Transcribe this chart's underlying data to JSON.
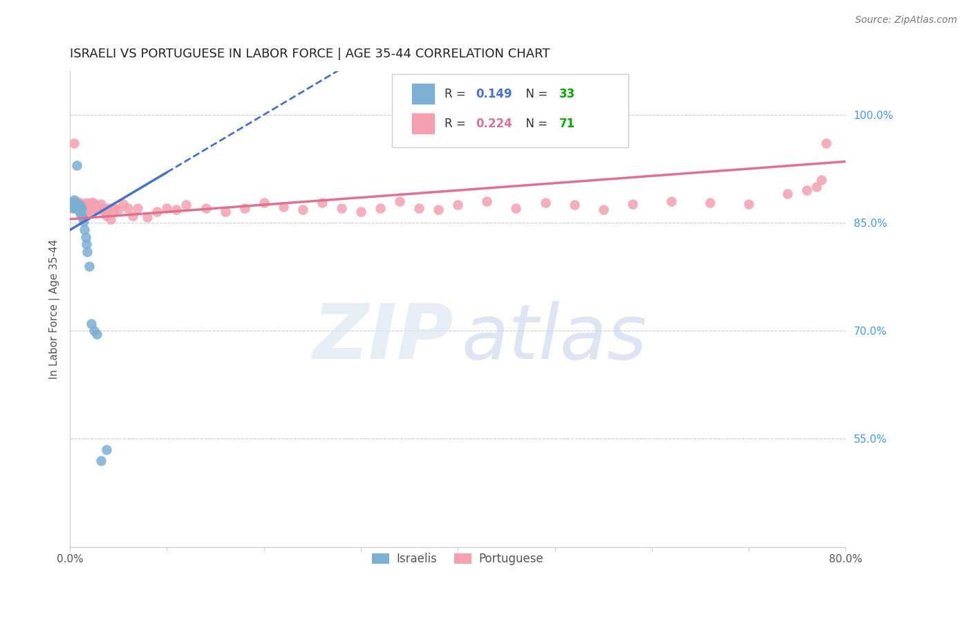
{
  "title": "ISRAELI VS PORTUGUESE IN LABOR FORCE | AGE 35-44 CORRELATION CHART",
  "source": "Source: ZipAtlas.com",
  "ylabel": "In Labor Force | Age 35-44",
  "xlim": [
    0.0,
    0.8
  ],
  "ylim": [
    0.4,
    1.06
  ],
  "yticks_right": [
    0.55,
    0.7,
    0.85,
    1.0
  ],
  "yticklabels_right": [
    "55.0%",
    "70.0%",
    "85.0%",
    "100.0%"
  ],
  "grid_color": "#cccccc",
  "background_color": "#ffffff",
  "israeli_color": "#7bafd4",
  "portuguese_color": "#f4a0b0",
  "israeli_line_color": "#4472c4",
  "portuguese_line_color": "#e07090",
  "israeli_R": 0.149,
  "israeli_N": 33,
  "portuguese_R": 0.224,
  "portuguese_N": 71,
  "legend_R_color": "#4472c4",
  "legend_N_color": "#00aa00",
  "portuguese_legend_R_color": "#e07090",
  "israeli_line_end": 0.1,
  "israeli_line_intercept": 0.84,
  "israeli_line_slope": 0.8,
  "portuguese_line_intercept": 0.855,
  "portuguese_line_slope": 0.1,
  "israelis_x": [
    0.002,
    0.003,
    0.003,
    0.004,
    0.004,
    0.005,
    0.005,
    0.006,
    0.006,
    0.007,
    0.007,
    0.008,
    0.008,
    0.009,
    0.009,
    0.01,
    0.01,
    0.011,
    0.011,
    0.012,
    0.012,
    0.013,
    0.014,
    0.015,
    0.016,
    0.017,
    0.018,
    0.02,
    0.022,
    0.025,
    0.028,
    0.032,
    0.038
  ],
  "israelis_y": [
    0.875,
    0.87,
    0.878,
    0.872,
    0.882,
    0.876,
    0.874,
    0.87,
    0.872,
    0.93,
    0.874,
    0.876,
    0.87,
    0.868,
    0.872,
    0.875,
    0.87,
    0.868,
    0.862,
    0.87,
    0.86,
    0.858,
    0.852,
    0.84,
    0.83,
    0.82,
    0.81,
    0.79,
    0.71,
    0.7,
    0.695,
    0.52,
    0.535
  ],
  "portuguese_x": [
    0.004,
    0.006,
    0.007,
    0.008,
    0.009,
    0.01,
    0.01,
    0.011,
    0.012,
    0.013,
    0.014,
    0.015,
    0.016,
    0.017,
    0.018,
    0.019,
    0.02,
    0.021,
    0.022,
    0.023,
    0.024,
    0.025,
    0.026,
    0.028,
    0.03,
    0.032,
    0.034,
    0.036,
    0.038,
    0.04,
    0.042,
    0.044,
    0.046,
    0.05,
    0.055,
    0.06,
    0.065,
    0.07,
    0.08,
    0.09,
    0.1,
    0.11,
    0.12,
    0.14,
    0.16,
    0.18,
    0.2,
    0.22,
    0.24,
    0.26,
    0.28,
    0.3,
    0.32,
    0.34,
    0.36,
    0.38,
    0.4,
    0.43,
    0.46,
    0.49,
    0.52,
    0.55,
    0.58,
    0.62,
    0.66,
    0.7,
    0.74,
    0.76,
    0.77,
    0.775,
    0.78
  ],
  "portuguese_y": [
    0.96,
    0.875,
    0.88,
    0.87,
    0.876,
    0.865,
    0.878,
    0.87,
    0.875,
    0.868,
    0.876,
    0.87,
    0.865,
    0.878,
    0.87,
    0.868,
    0.876,
    0.87,
    0.878,
    0.865,
    0.878,
    0.87,
    0.875,
    0.87,
    0.868,
    0.876,
    0.87,
    0.865,
    0.86,
    0.87,
    0.855,
    0.865,
    0.87,
    0.868,
    0.876,
    0.87,
    0.86,
    0.87,
    0.858,
    0.865,
    0.87,
    0.868,
    0.875,
    0.87,
    0.865,
    0.87,
    0.878,
    0.872,
    0.868,
    0.878,
    0.87,
    0.865,
    0.87,
    0.88,
    0.87,
    0.868,
    0.875,
    0.88,
    0.87,
    0.878,
    0.875,
    0.868,
    0.876,
    0.88,
    0.878,
    0.876,
    0.89,
    0.895,
    0.9,
    0.91,
    0.96
  ]
}
